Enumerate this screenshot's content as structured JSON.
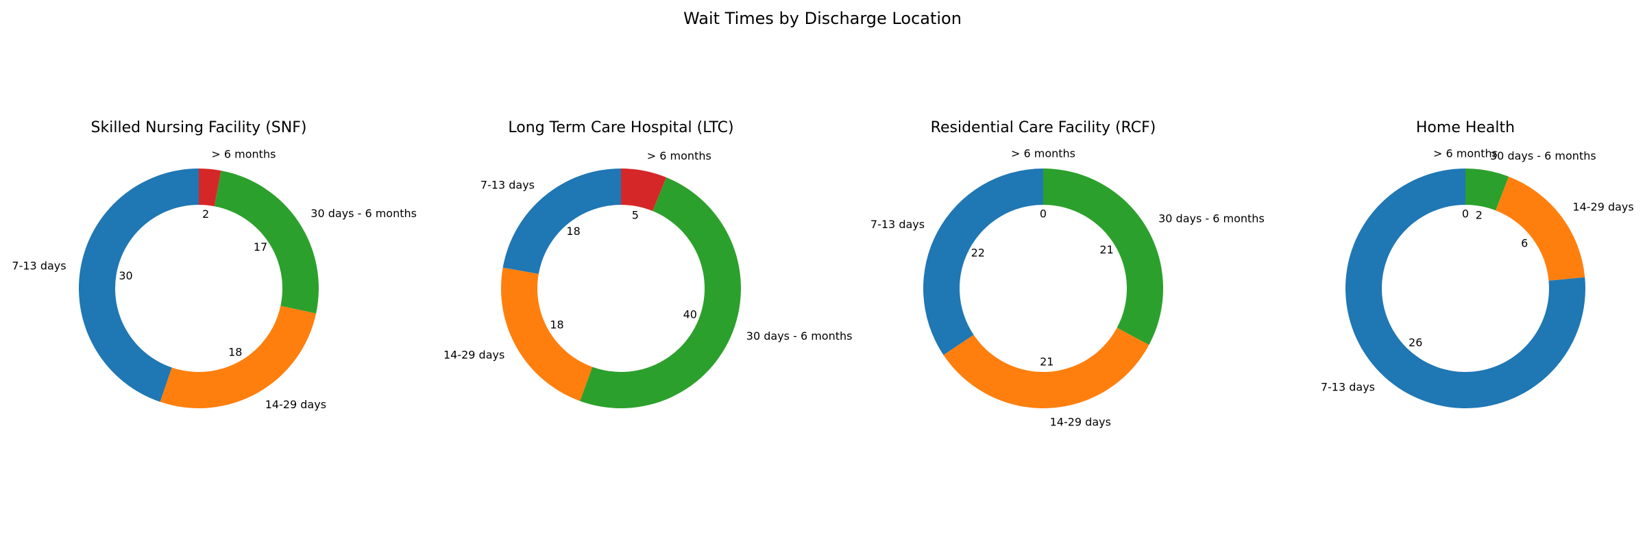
{
  "figure": {
    "title": "Wait Times by Discharge Location"
  },
  "colors": {
    "> 6 months": "#d62728",
    "30 days - 6 months": "#2ca02c",
    "14-29 days": "#ff7f0e",
    "7-13 days": "#1f77b4"
  },
  "chart_data": [
    {
      "type": "pie",
      "title": "Skilled Nursing Facility (SNF)",
      "categories": [
        "> 6 months",
        "30 days - 6 months",
        "14-29 days",
        "7-13 days"
      ],
      "values": [
        2,
        17,
        18,
        30
      ]
    },
    {
      "type": "pie",
      "title": "Long Term Care Hospital (LTC)",
      "categories": [
        "> 6 months",
        "30 days - 6 months",
        "14-29 days",
        "7-13 days"
      ],
      "values": [
        5,
        40,
        18,
        18
      ]
    },
    {
      "type": "pie",
      "title": "Residential Care Facility (RCF)",
      "categories": [
        "> 6 months",
        "30 days - 6 months",
        "14-29 days",
        "7-13 days"
      ],
      "values": [
        0,
        21,
        21,
        22
      ]
    },
    {
      "type": "pie",
      "title": "Home Health",
      "categories": [
        "> 6 months",
        "30 days - 6 months",
        "14-29 days",
        "7-13 days"
      ],
      "values": [
        0,
        2,
        6,
        26
      ]
    }
  ]
}
